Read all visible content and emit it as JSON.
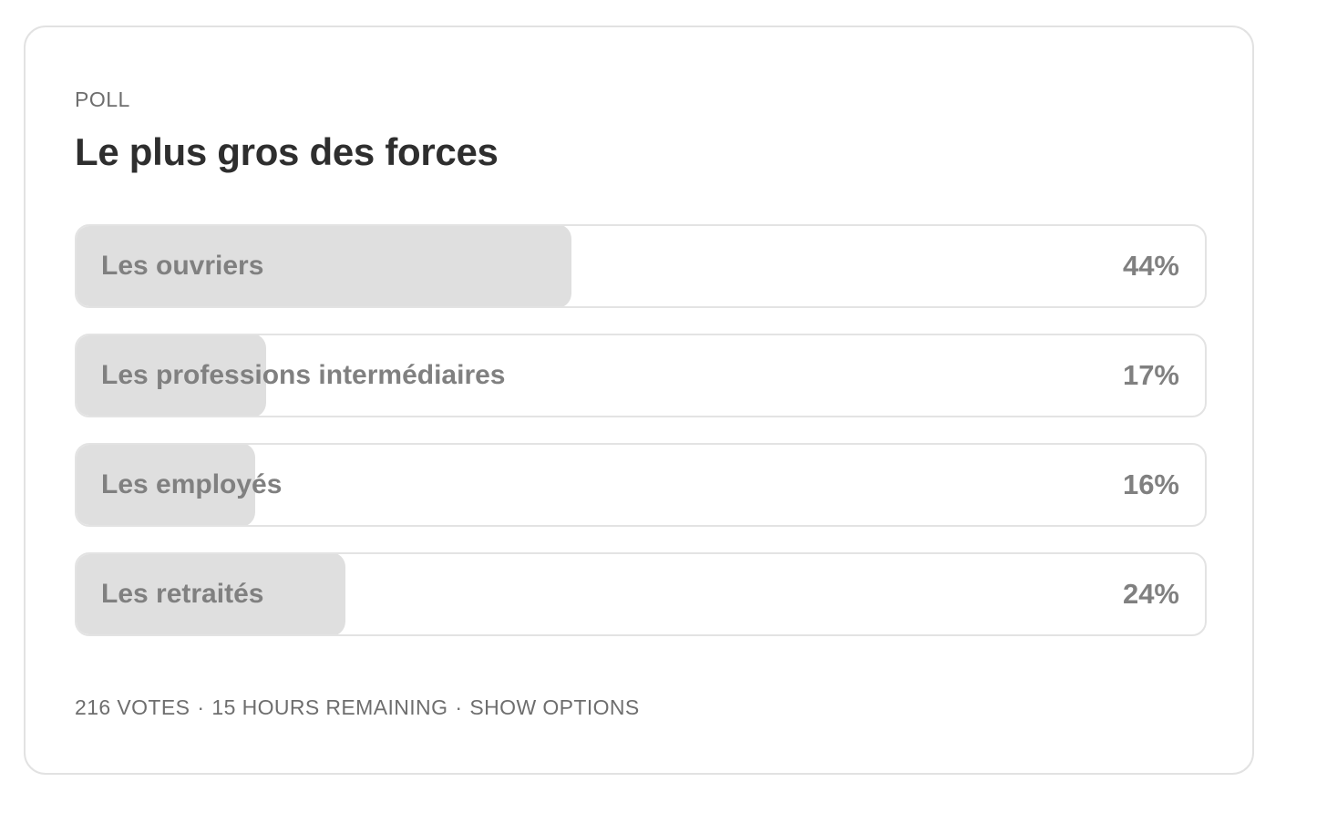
{
  "poll": {
    "label": "POLL",
    "title": "Le plus gros des forces",
    "options": [
      {
        "label": "Les ouvriers",
        "percent_text": "44%",
        "percent": 44
      },
      {
        "label": "Les professions intermédiaires",
        "percent_text": "17%",
        "percent": 17
      },
      {
        "label": "Les employés",
        "percent_text": "16%",
        "percent": 16
      },
      {
        "label": "Les retraités",
        "percent_text": "24%",
        "percent": 24
      }
    ],
    "footer": {
      "votes": "216 VOTES",
      "separator": "·",
      "remaining": "15 HOURS REMAINING",
      "show_options": "SHOW OPTIONS"
    }
  },
  "colors": {
    "fill": "#dfdfdf",
    "border": "#e3e3e3",
    "title": "#2e2e2e",
    "muted": "#808080"
  }
}
